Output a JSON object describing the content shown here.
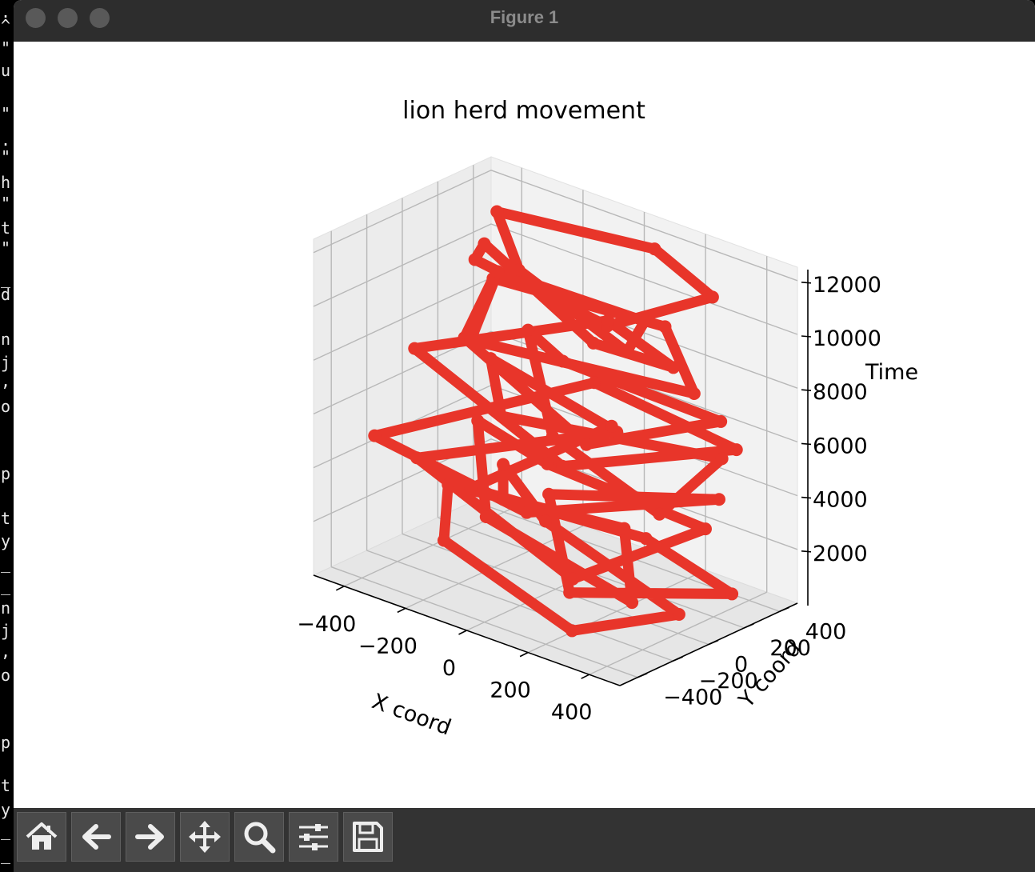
{
  "window": {
    "title": "Figure 1"
  },
  "terminal_glyphs": [
    {
      "ch": ".",
      "y": 5
    },
    {
      "ch": "^",
      "y": 22
    },
    {
      "ch": "\"",
      "y": 50
    },
    {
      "ch": "u",
      "y": 78
    },
    {
      "ch": "\"",
      "y": 132
    },
    {
      "ch": ".",
      "y": 165
    },
    {
      "ch": "\"",
      "y": 186
    },
    {
      "ch": "h",
      "y": 218
    },
    {
      "ch": "\"",
      "y": 244
    },
    {
      "ch": "t",
      "y": 275
    },
    {
      "ch": "\"",
      "y": 300
    },
    {
      "ch": "_",
      "y": 338
    },
    {
      "ch": "d",
      "y": 358
    },
    {
      "ch": "n",
      "y": 414
    },
    {
      "ch": "j",
      "y": 443
    },
    {
      "ch": ",",
      "y": 466
    },
    {
      "ch": "o",
      "y": 498
    },
    {
      "ch": "p",
      "y": 582
    },
    {
      "ch": "t",
      "y": 638
    },
    {
      "ch": "y",
      "y": 666
    },
    {
      "ch": "_",
      "y": 694
    },
    {
      "ch": "_",
      "y": 722
    },
    {
      "ch": "n",
      "y": 750
    },
    {
      "ch": "j",
      "y": 778
    },
    {
      "ch": ",",
      "y": 804
    },
    {
      "ch": "o",
      "y": 834
    },
    {
      "ch": "p",
      "y": 918
    },
    {
      "ch": "t",
      "y": 972
    },
    {
      "ch": "y",
      "y": 1002
    },
    {
      "ch": "_",
      "y": 1028
    },
    {
      "ch": "_",
      "y": 1058
    }
  ],
  "toolbar": {
    "buttons": [
      {
        "name": "home-button",
        "icon": "home-icon"
      },
      {
        "name": "back-button",
        "icon": "arrow-left-icon"
      },
      {
        "name": "forward-button",
        "icon": "arrow-right-icon"
      },
      {
        "name": "pan-button",
        "icon": "move-icon"
      },
      {
        "name": "zoom-button",
        "icon": "magnifier-icon"
      },
      {
        "name": "subplots-button",
        "icon": "sliders-icon"
      },
      {
        "name": "save-button",
        "icon": "floppy-disk-icon"
      }
    ]
  },
  "chart_data": {
    "type": "line3d",
    "title": "lion herd movement",
    "xlabel": "X coord",
    "ylabel": "Y coord",
    "zlabel": "Time",
    "xlim": [
      -500,
      500
    ],
    "ylim": [
      -500,
      500
    ],
    "zlim": [
      0,
      12500
    ],
    "xticks": [
      "−400",
      "−200",
      "0",
      "200",
      "400"
    ],
    "yticks": [
      "−400",
      "−200",
      "0",
      "200",
      "400"
    ],
    "zticks": [
      "2000",
      "4000",
      "6000",
      "8000",
      "10000",
      "12000"
    ],
    "grid": true,
    "series_color": "#e8352a",
    "series": [
      {
        "points": [
          [
            -420,
            430,
            300
          ],
          [
            -420,
            430,
            1600
          ],
          [
            -160,
            220,
            1200
          ],
          [
            380,
            40,
            500
          ],
          [
            280,
            -390,
            800
          ],
          [
            -260,
            -180,
            1300
          ],
          [
            -420,
            120,
            1800
          ],
          [
            120,
            180,
            2200
          ],
          [
            470,
            -380,
            2600
          ],
          [
            -180,
            -80,
            2200
          ],
          [
            -480,
            390,
            3100
          ],
          [
            -160,
            230,
            3300
          ],
          [
            420,
            120,
            3600
          ],
          [
            300,
            -420,
            2900
          ],
          [
            -360,
            -160,
            3900
          ],
          [
            -20,
            380,
            4600
          ],
          [
            -490,
            480,
            5100
          ],
          [
            -200,
            40,
            5500
          ],
          [
            300,
            420,
            4800
          ],
          [
            490,
            -260,
            5600
          ],
          [
            60,
            -120,
            6300
          ],
          [
            -310,
            380,
            7200
          ],
          [
            -80,
            180,
            7600
          ],
          [
            470,
            120,
            7800
          ],
          [
            240,
            -240,
            7100
          ],
          [
            -280,
            -30,
            8300
          ],
          [
            -430,
            390,
            8600
          ],
          [
            120,
            410,
            9000
          ],
          [
            470,
            -30,
            9300
          ],
          [
            -120,
            -270,
            9600
          ],
          [
            -310,
            210,
            9900
          ],
          [
            210,
            140,
            10400
          ],
          [
            320,
            -150,
            10600
          ],
          [
            -160,
            70,
            11000
          ],
          [
            -400,
            360,
            11300
          ],
          [
            80,
            420,
            11700
          ],
          [
            420,
            160,
            12100
          ],
          [
            320,
            -260,
            11900
          ],
          [
            -240,
            -40,
            11400
          ],
          [
            -360,
            220,
            10700
          ],
          [
            170,
            -80,
            10100
          ],
          [
            350,
            60,
            9500
          ],
          [
            -20,
            330,
            8900
          ],
          [
            -350,
            -190,
            8100
          ],
          [
            260,
            -410,
            6900
          ],
          [
            440,
            260,
            6200
          ],
          [
            -140,
            460,
            5700
          ],
          [
            -440,
            -260,
            4700
          ],
          [
            80,
            -300,
            4100
          ],
          [
            360,
            300,
            3900
          ],
          [
            -80,
            100,
            2900
          ],
          [
            220,
            -300,
            1700
          ],
          [
            460,
            200,
            1100
          ],
          [
            40,
            440,
            700
          ],
          [
            -300,
            40,
            2400
          ],
          [
            160,
            40,
            6600
          ]
        ]
      }
    ]
  }
}
